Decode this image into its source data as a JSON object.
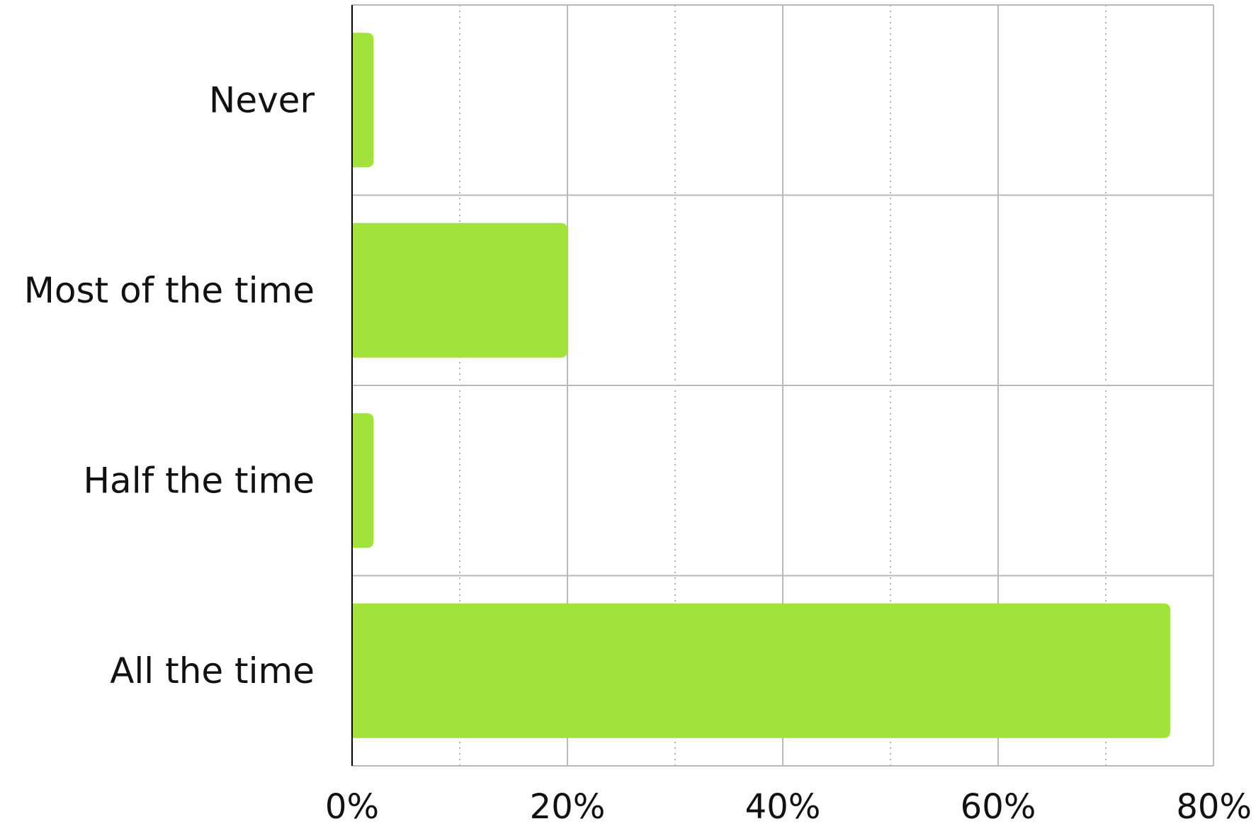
{
  "chart_data": {
    "type": "bar",
    "orientation": "horizontal",
    "categories": [
      "Never",
      "Most of the time",
      "Half the time",
      "All the time"
    ],
    "values": [
      2,
      20,
      2,
      76
    ],
    "x_unit": "%",
    "xlim": [
      0,
      80
    ],
    "x_ticks": [
      "0%",
      "20%",
      "40%",
      "60%",
      "80%"
    ],
    "title": "",
    "xlabel": "",
    "ylabel": "",
    "grid": true,
    "legend": "none",
    "bar_color": "#a2e23d"
  }
}
